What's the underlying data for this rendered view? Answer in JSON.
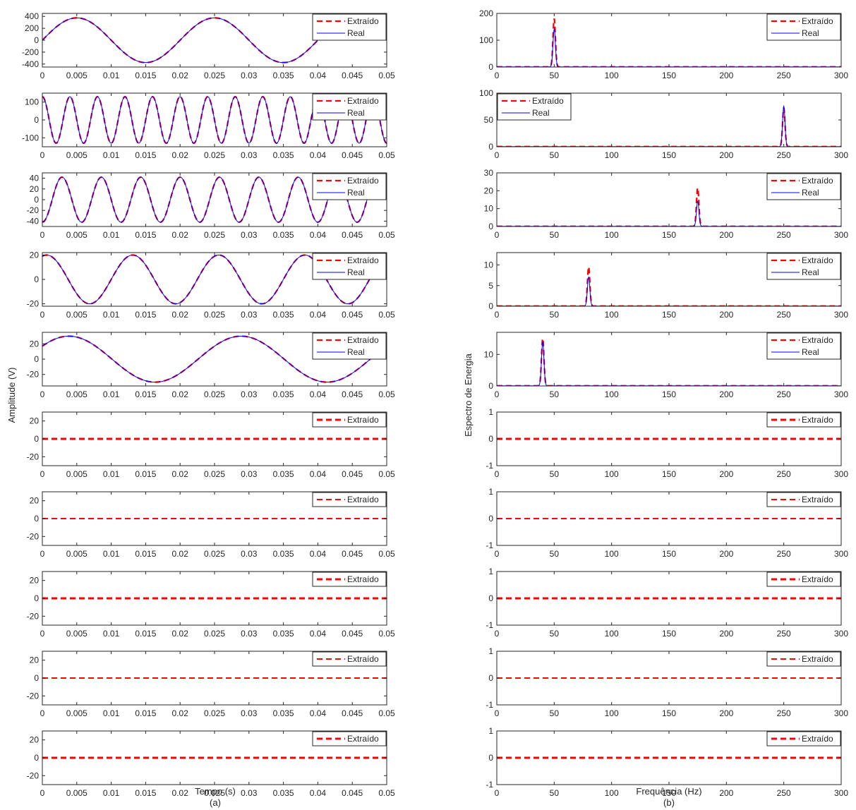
{
  "figure": {
    "left_caption": "(a)",
    "right_caption": "(b)",
    "left_ylabel": "Amplitude (V)",
    "left_xlabel": "Tempo (s)",
    "right_ylabel": "Espectro de Energia",
    "right_xlabel": "Frequência (Hz)",
    "legend_extracted": "Extraído",
    "legend_real": "Real"
  },
  "colors": {
    "extracted": "#ff0000",
    "real": "#0000ff",
    "axis": "#262626",
    "background": "#ffffff"
  },
  "chart_data": [
    {
      "type": "line",
      "panel": "a1",
      "signal": "sine",
      "amplitude": 375,
      "frequency_hz": 50,
      "phase": 0,
      "x_end": 0.048,
      "xlim": [
        0,
        0.05
      ],
      "ylim": [
        -450,
        450
      ],
      "yticks": [
        -400,
        -200,
        0,
        200,
        400
      ],
      "xticks": [
        0,
        0.005,
        0.01,
        0.015,
        0.02,
        0.025,
        0.03,
        0.035,
        0.04,
        0.045,
        0.05
      ],
      "series": [
        {
          "name": "Extraído",
          "style": "dashed"
        },
        {
          "name": "Real",
          "style": "solid"
        }
      ],
      "legend": "top-right"
    },
    {
      "type": "line",
      "panel": "a2",
      "signal": "sine",
      "amplitude": 130,
      "frequency_hz": 250,
      "phase": 1.571,
      "x_end": 0.05,
      "xlim": [
        0,
        0.05
      ],
      "ylim": [
        -150,
        150
      ],
      "yticks": [
        -100,
        0,
        100
      ],
      "xticks": [
        0,
        0.005,
        0.01,
        0.015,
        0.02,
        0.025,
        0.03,
        0.035,
        0.04,
        0.045,
        0.05
      ],
      "series": [
        {
          "name": "Extraído",
          "style": "dashed"
        },
        {
          "name": "Real",
          "style": "solid"
        }
      ],
      "legend": "top-right"
    },
    {
      "type": "line",
      "panel": "a3",
      "signal": "sine",
      "amplitude": 42,
      "frequency_hz": 175,
      "phase": -1.571,
      "x_end": 0.048,
      "xlim": [
        0,
        0.05
      ],
      "ylim": [
        -50,
        50
      ],
      "yticks": [
        -40,
        -20,
        0,
        20,
        40
      ],
      "xticks": [
        0,
        0.005,
        0.01,
        0.015,
        0.02,
        0.025,
        0.03,
        0.035,
        0.04,
        0.045,
        0.05
      ],
      "series": [
        {
          "name": "Extraído",
          "style": "dashed"
        },
        {
          "name": "Real",
          "style": "solid"
        }
      ],
      "legend": "top-right"
    },
    {
      "type": "line",
      "panel": "a4",
      "signal": "sine",
      "amplitude": 20,
      "frequency_hz": 80,
      "phase": 1.257,
      "x_end": 0.048,
      "xlim": [
        0,
        0.05
      ],
      "ylim": [
        -22,
        22
      ],
      "yticks": [
        -20,
        0,
        20
      ],
      "xticks": [
        0,
        0.005,
        0.01,
        0.015,
        0.02,
        0.025,
        0.03,
        0.035,
        0.04,
        0.045,
        0.05
      ],
      "series": [
        {
          "name": "Extraído",
          "style": "dashed"
        },
        {
          "name": "Real",
          "style": "solid"
        }
      ],
      "legend": "top-right"
    },
    {
      "type": "line",
      "panel": "a5",
      "signal": "sine",
      "amplitude": 30,
      "frequency_hz": 40,
      "phase": 0.6,
      "x_end": 0.048,
      "xlim": [
        0,
        0.05
      ],
      "ylim": [
        -35,
        35
      ],
      "yticks": [
        -20,
        0,
        20
      ],
      "xticks": [
        0,
        0.005,
        0.01,
        0.015,
        0.02,
        0.025,
        0.03,
        0.035,
        0.04,
        0.045,
        0.05
      ],
      "series": [
        {
          "name": "Extraído",
          "style": "dashed"
        },
        {
          "name": "Real",
          "style": "solid"
        }
      ],
      "legend": "top-right"
    },
    {
      "type": "line",
      "panel": "a6",
      "signal": "zero",
      "xlim": [
        0,
        0.05
      ],
      "ylim": [
        -30,
        30
      ],
      "yticks": [
        -20,
        0,
        20
      ],
      "xticks": [
        0,
        0.005,
        0.01,
        0.015,
        0.02,
        0.025,
        0.03,
        0.035,
        0.04,
        0.045,
        0.05
      ],
      "series": [
        {
          "name": "Extraído",
          "style": "dashed"
        }
      ],
      "legend": "top-right"
    },
    {
      "type": "line",
      "panel": "a7",
      "signal": "zero",
      "xlim": [
        0,
        0.05
      ],
      "ylim": [
        -30,
        30
      ],
      "yticks": [
        -20,
        0,
        20
      ],
      "xticks": [
        0,
        0.005,
        0.01,
        0.015,
        0.02,
        0.025,
        0.03,
        0.035,
        0.04,
        0.045,
        0.05
      ],
      "series": [
        {
          "name": "Extraído",
          "style": "dashed"
        }
      ],
      "legend": "top-right"
    },
    {
      "type": "line",
      "panel": "a8",
      "signal": "zero",
      "xlim": [
        0,
        0.05
      ],
      "ylim": [
        -30,
        30
      ],
      "yticks": [
        -20,
        0,
        20
      ],
      "xticks": [
        0,
        0.005,
        0.01,
        0.015,
        0.02,
        0.025,
        0.03,
        0.035,
        0.04,
        0.045,
        0.05
      ],
      "series": [
        {
          "name": "Extraído",
          "style": "dashed"
        }
      ],
      "legend": "top-right"
    },
    {
      "type": "line",
      "panel": "a9",
      "signal": "zero",
      "xlim": [
        0,
        0.05
      ],
      "ylim": [
        -30,
        30
      ],
      "yticks": [
        -20,
        0,
        20
      ],
      "xticks": [
        0,
        0.005,
        0.01,
        0.015,
        0.02,
        0.025,
        0.03,
        0.035,
        0.04,
        0.045,
        0.05
      ],
      "series": [
        {
          "name": "Extraído",
          "style": "dashed"
        }
      ],
      "legend": "top-right"
    },
    {
      "type": "line",
      "panel": "a10",
      "signal": "zero",
      "xlim": [
        0,
        0.05
      ],
      "ylim": [
        -30,
        30
      ],
      "yticks": [
        -20,
        0,
        20
      ],
      "xticks": [
        0,
        0.005,
        0.01,
        0.015,
        0.02,
        0.025,
        0.03,
        0.035,
        0.04,
        0.045,
        0.05
      ],
      "series": [
        {
          "name": "Extraído",
          "style": "dashed"
        }
      ],
      "legend": "top-right"
    },
    {
      "type": "line",
      "panel": "b1",
      "signal": "spectrum",
      "peak_hz": 50,
      "peak_extracted": 180,
      "peak_real": 140,
      "width_hz": 1.5,
      "xlim": [
        0,
        300
      ],
      "ylim": [
        0,
        200
      ],
      "yticks": [
        0,
        100,
        200
      ],
      "xticks": [
        0,
        50,
        100,
        150,
        200,
        250,
        300
      ],
      "series": [
        {
          "name": "Extraído",
          "style": "dashed"
        },
        {
          "name": "Real",
          "style": "solid"
        }
      ],
      "legend": "top-right"
    },
    {
      "type": "line",
      "panel": "b2",
      "signal": "spectrum",
      "peak_hz": 250,
      "peak_extracted": 72,
      "peak_real": 75,
      "width_hz": 1.5,
      "xlim": [
        0,
        300
      ],
      "ylim": [
        0,
        100
      ],
      "yticks": [
        0,
        50,
        100
      ],
      "xticks": [
        0,
        50,
        100,
        150,
        200,
        250,
        300
      ],
      "series": [
        {
          "name": "Extraído",
          "style": "dashed"
        },
        {
          "name": "Real",
          "style": "solid"
        }
      ],
      "legend": "top-left"
    },
    {
      "type": "line",
      "panel": "b3",
      "signal": "spectrum",
      "peak_hz": 175,
      "peak_extracted": 21.5,
      "peak_real": 14,
      "width_hz": 1.5,
      "xlim": [
        0,
        300
      ],
      "ylim": [
        0,
        30
      ],
      "yticks": [
        0,
        10,
        20,
        30
      ],
      "xticks": [
        0,
        50,
        100,
        150,
        200,
        250,
        300
      ],
      "series": [
        {
          "name": "Extraído",
          "style": "dashed"
        },
        {
          "name": "Real",
          "style": "solid"
        }
      ],
      "legend": "top-right"
    },
    {
      "type": "line",
      "panel": "b4",
      "signal": "spectrum",
      "peak_hz": 80,
      "peak_extracted": 9.5,
      "peak_real": 7,
      "width_hz": 1.5,
      "xlim": [
        0,
        300
      ],
      "ylim": [
        0,
        13
      ],
      "yticks": [
        0,
        5,
        10
      ],
      "xticks": [
        0,
        50,
        100,
        150,
        200,
        250,
        300
      ],
      "series": [
        {
          "name": "Extraído",
          "style": "dashed"
        },
        {
          "name": "Real",
          "style": "solid"
        }
      ],
      "legend": "top-right"
    },
    {
      "type": "line",
      "panel": "b5",
      "signal": "spectrum",
      "peak_hz": 40,
      "peak_extracted": 15,
      "peak_real": 14,
      "width_hz": 1.5,
      "xlim": [
        0,
        300
      ],
      "ylim": [
        0,
        17
      ],
      "yticks": [
        0,
        10
      ],
      "xticks": [
        0,
        50,
        100,
        150,
        200,
        250,
        300
      ],
      "series": [
        {
          "name": "Extraído",
          "style": "dashed"
        },
        {
          "name": "Real",
          "style": "solid"
        }
      ],
      "legend": "top-right"
    },
    {
      "type": "line",
      "panel": "b6",
      "signal": "zero",
      "xlim": [
        0,
        300
      ],
      "ylim": [
        -1,
        1
      ],
      "yticks": [
        -1,
        0,
        1
      ],
      "xticks": [
        0,
        50,
        100,
        150,
        200,
        250,
        300
      ],
      "series": [
        {
          "name": "Extraído",
          "style": "dashed"
        }
      ],
      "legend": "top-right"
    },
    {
      "type": "line",
      "panel": "b7",
      "signal": "zero",
      "xlim": [
        0,
        300
      ],
      "ylim": [
        -1,
        1
      ],
      "yticks": [
        -1,
        0,
        1
      ],
      "xticks": [
        0,
        50,
        100,
        150,
        200,
        250,
        300
      ],
      "series": [
        {
          "name": "Extraído",
          "style": "dashed"
        }
      ],
      "legend": "top-right"
    },
    {
      "type": "line",
      "panel": "b8",
      "signal": "zero",
      "xlim": [
        0,
        300
      ],
      "ylim": [
        -1,
        1
      ],
      "yticks": [
        -1,
        0,
        1
      ],
      "xticks": [
        0,
        50,
        100,
        150,
        200,
        250,
        300
      ],
      "series": [
        {
          "name": "Extraído",
          "style": "dashed"
        }
      ],
      "legend": "top-right"
    },
    {
      "type": "line",
      "panel": "b9",
      "signal": "zero",
      "xlim": [
        0,
        300
      ],
      "ylim": [
        -1,
        1
      ],
      "yticks": [
        -1,
        0,
        1
      ],
      "xticks": [
        0,
        50,
        100,
        150,
        200,
        250,
        300
      ],
      "series": [
        {
          "name": "Extraído",
          "style": "dashed"
        }
      ],
      "legend": "top-right"
    },
    {
      "type": "line",
      "panel": "b10",
      "signal": "zero",
      "xlim": [
        0,
        300
      ],
      "ylim": [
        -1,
        1
      ],
      "yticks": [
        -1,
        0,
        1
      ],
      "xticks": [
        0,
        50,
        100,
        150,
        200,
        250,
        300
      ],
      "series": [
        {
          "name": "Extraído",
          "style": "dashed"
        }
      ],
      "legend": "top-right"
    }
  ]
}
